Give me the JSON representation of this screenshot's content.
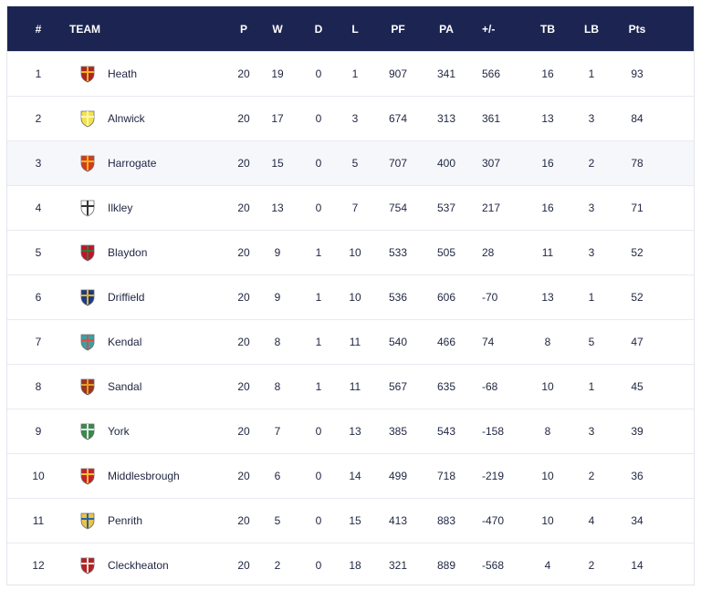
{
  "headers": {
    "pos": "#",
    "team": "TEAM",
    "p": "P",
    "w": "W",
    "d": "D",
    "l": "L",
    "pf": "PF",
    "pa": "PA",
    "pm": "+/-",
    "tb": "TB",
    "lb": "LB",
    "pts": "Pts"
  },
  "colors": {
    "header_bg": "#1c2552",
    "header_text": "#ffffff",
    "row_alt": "#f6f7fb",
    "text": "#1e2540"
  },
  "rows": [
    {
      "pos": "1",
      "team": "Heath",
      "p": "20",
      "w": "19",
      "d": "0",
      "l": "1",
      "pf": "907",
      "pa": "341",
      "pm": "566",
      "tb": "16",
      "lb": "1",
      "pts": "93",
      "crest": "heath-crest-icon",
      "c1": "#b3231f",
      "c2": "#e8b923"
    },
    {
      "pos": "2",
      "team": "Alnwick",
      "p": "20",
      "w": "17",
      "d": "0",
      "l": "3",
      "pf": "674",
      "pa": "313",
      "pm": "361",
      "tb": "13",
      "lb": "3",
      "pts": "84",
      "crest": "alnwick-crest-icon",
      "c1": "#f2e34a",
      "c2": "#fff6b0"
    },
    {
      "pos": "3",
      "team": "Harrogate",
      "p": "20",
      "w": "15",
      "d": "0",
      "l": "5",
      "pf": "707",
      "pa": "400",
      "pm": "307",
      "tb": "16",
      "lb": "2",
      "pts": "78",
      "crest": "harrogate-crest-icon",
      "c1": "#d63a1e",
      "c2": "#f4b21b"
    },
    {
      "pos": "4",
      "team": "Ilkley",
      "p": "20",
      "w": "13",
      "d": "0",
      "l": "7",
      "pf": "754",
      "pa": "537",
      "pm": "217",
      "tb": "16",
      "lb": "3",
      "pts": "71",
      "crest": "ilkley-crest-icon",
      "c1": "#ffffff",
      "c2": "#333333"
    },
    {
      "pos": "5",
      "team": "Blaydon",
      "p": "20",
      "w": "9",
      "d": "1",
      "l": "10",
      "pf": "533",
      "pa": "505",
      "pm": "28",
      "tb": "11",
      "lb": "3",
      "pts": "52",
      "crest": "blaydon-crest-icon",
      "c1": "#c8102e",
      "c2": "#2e7d32"
    },
    {
      "pos": "6",
      "team": "Driffield",
      "p": "20",
      "w": "9",
      "d": "1",
      "l": "10",
      "pf": "536",
      "pa": "606",
      "pm": "-70",
      "tb": "13",
      "lb": "1",
      "pts": "52",
      "crest": "driffield-crest-icon",
      "c1": "#1b3a8a",
      "c2": "#e6b422"
    },
    {
      "pos": "7",
      "team": "Kendal",
      "p": "20",
      "w": "8",
      "d": "1",
      "l": "11",
      "pf": "540",
      "pa": "466",
      "pm": "74",
      "tb": "8",
      "lb": "5",
      "pts": "47",
      "crest": "kendal-crest-icon",
      "c1": "#3aa1a8",
      "c2": "#d94f3d"
    },
    {
      "pos": "8",
      "team": "Sandal",
      "p": "20",
      "w": "8",
      "d": "1",
      "l": "11",
      "pf": "567",
      "pa": "635",
      "pm": "-68",
      "tb": "10",
      "lb": "1",
      "pts": "45",
      "crest": "sandal-crest-icon",
      "c1": "#a0341c",
      "c2": "#e0a029"
    },
    {
      "pos": "9",
      "team": "York",
      "p": "20",
      "w": "7",
      "d": "0",
      "l": "13",
      "pf": "385",
      "pa": "543",
      "pm": "-158",
      "tb": "8",
      "lb": "3",
      "pts": "39",
      "crest": "york-crest-icon",
      "c1": "#3b8a4a",
      "c2": "#dfe8ef"
    },
    {
      "pos": "10",
      "team": "Middlesbrough",
      "p": "20",
      "w": "6",
      "d": "0",
      "l": "14",
      "pf": "499",
      "pa": "718",
      "pm": "-219",
      "tb": "10",
      "lb": "2",
      "pts": "36",
      "crest": "middlesbrough-crest-icon",
      "c1": "#c8202a",
      "c2": "#f1c232"
    },
    {
      "pos": "11",
      "team": "Penrith",
      "p": "20",
      "w": "5",
      "d": "0",
      "l": "15",
      "pf": "413",
      "pa": "883",
      "pm": "-470",
      "tb": "10",
      "lb": "4",
      "pts": "34",
      "crest": "penrith-crest-icon",
      "c1": "#e8c547",
      "c2": "#2b5fa8"
    },
    {
      "pos": "12",
      "team": "Cleckheaton",
      "p": "20",
      "w": "2",
      "d": "0",
      "l": "18",
      "pf": "321",
      "pa": "889",
      "pm": "-568",
      "tb": "4",
      "lb": "2",
      "pts": "14",
      "crest": "cleckheaton-crest-icon",
      "c1": "#b5202b",
      "c2": "#f0e6d2"
    }
  ]
}
